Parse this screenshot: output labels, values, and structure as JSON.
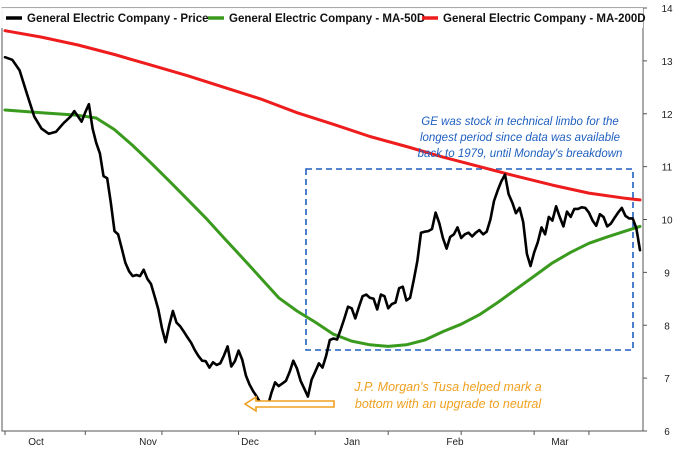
{
  "chart_data": {
    "type": "line",
    "title": "",
    "xlabel": "",
    "ylabel": "",
    "ylim": [
      6,
      14
    ],
    "y_ticks": [
      "6",
      "7",
      "8",
      "9",
      "10",
      "11",
      "12",
      "13",
      "14"
    ],
    "x_ticks": [
      "Oct",
      "Nov",
      "Dec",
      "Jan",
      "Feb",
      "Mar"
    ],
    "grid": false,
    "legend_position": "top",
    "colors": {
      "price": "#000000",
      "ma50": "#3a9a1e",
      "ma200": "#ee1c1c",
      "annotation_blue": "#1f5fbf",
      "annotation_orange": "#f0a020",
      "box": "#1f5fbf"
    },
    "series": [
      {
        "name": "General Electric Company - Price",
        "key": "price",
        "points": [
          [
            0,
            13.07
          ],
          [
            2,
            13.02
          ],
          [
            4,
            12.82
          ],
          [
            6,
            12.38
          ],
          [
            8,
            11.95
          ],
          [
            10,
            11.72
          ],
          [
            12,
            11.62
          ],
          [
            14,
            11.66
          ],
          [
            16,
            11.82
          ],
          [
            18,
            11.95
          ],
          [
            19,
            12.05
          ],
          [
            20,
            11.95
          ],
          [
            21,
            11.85
          ],
          [
            22,
            12.03
          ],
          [
            23,
            12.18
          ],
          [
            24,
            11.72
          ],
          [
            25,
            11.45
          ],
          [
            26,
            11.25
          ],
          [
            27,
            10.82
          ],
          [
            28,
            10.78
          ],
          [
            29,
            10.32
          ],
          [
            30,
            9.78
          ],
          [
            31,
            9.72
          ],
          [
            32,
            9.45
          ],
          [
            33,
            9.18
          ],
          [
            34,
            9.02
          ],
          [
            35,
            8.93
          ],
          [
            36,
            8.95
          ],
          [
            37,
            8.93
          ],
          [
            38,
            9.05
          ],
          [
            39,
            8.88
          ],
          [
            40,
            8.78
          ],
          [
            41,
            8.55
          ],
          [
            42,
            8.3
          ],
          [
            43,
            7.95
          ],
          [
            44,
            7.68
          ],
          [
            45,
            8.0
          ],
          [
            46,
            8.27
          ],
          [
            47,
            8.05
          ],
          [
            48,
            7.98
          ],
          [
            49,
            7.88
          ],
          [
            50,
            7.77
          ],
          [
            51,
            7.67
          ],
          [
            52,
            7.53
          ],
          [
            53,
            7.42
          ],
          [
            54,
            7.33
          ],
          [
            55,
            7.32
          ],
          [
            56,
            7.2
          ],
          [
            57,
            7.3
          ],
          [
            58,
            7.25
          ],
          [
            59,
            7.28
          ],
          [
            60,
            7.43
          ],
          [
            61,
            7.6
          ],
          [
            62,
            7.22
          ],
          [
            63,
            7.32
          ],
          [
            64,
            7.52
          ],
          [
            65,
            7.35
          ],
          [
            66,
            7.05
          ],
          [
            67,
            6.88
          ],
          [
            68,
            6.75
          ],
          [
            69,
            6.65
          ],
          [
            70,
            6.53
          ],
          [
            71,
            6.48
          ],
          [
            72,
            6.47
          ],
          [
            73,
            6.72
          ],
          [
            74,
            6.92
          ],
          [
            75,
            6.85
          ],
          [
            76,
            6.9
          ],
          [
            77,
            6.95
          ],
          [
            78,
            7.12
          ],
          [
            79,
            7.33
          ],
          [
            80,
            7.18
          ],
          [
            81,
            6.95
          ],
          [
            82,
            6.8
          ],
          [
            83,
            6.65
          ],
          [
            84,
            6.97
          ],
          [
            85,
            7.12
          ],
          [
            86,
            7.28
          ],
          [
            87,
            7.2
          ],
          [
            88,
            7.42
          ],
          [
            89,
            7.72
          ],
          [
            90,
            7.75
          ],
          [
            91,
            7.73
          ],
          [
            92,
            7.92
          ],
          [
            93,
            8.13
          ],
          [
            94,
            8.35
          ],
          [
            95,
            8.32
          ],
          [
            96,
            8.13
          ],
          [
            97,
            8.35
          ],
          [
            98,
            8.55
          ],
          [
            99,
            8.58
          ],
          [
            100,
            8.52
          ],
          [
            101,
            8.5
          ],
          [
            102,
            8.3
          ],
          [
            103,
            8.58
          ],
          [
            104,
            8.55
          ],
          [
            105,
            8.32
          ],
          [
            106,
            8.4
          ],
          [
            107,
            8.43
          ],
          [
            108,
            8.7
          ],
          [
            109,
            8.73
          ],
          [
            110,
            8.47
          ],
          [
            111,
            8.52
          ],
          [
            112,
            8.85
          ],
          [
            113,
            9.22
          ],
          [
            114,
            9.75
          ],
          [
            115,
            9.77
          ],
          [
            116,
            9.78
          ],
          [
            117,
            9.82
          ],
          [
            118,
            10.13
          ],
          [
            119,
            9.93
          ],
          [
            120,
            9.65
          ],
          [
            121,
            9.45
          ],
          [
            122,
            9.67
          ],
          [
            123,
            9.72
          ],
          [
            124,
            9.85
          ],
          [
            125,
            9.65
          ],
          [
            126,
            9.72
          ],
          [
            127,
            9.75
          ],
          [
            128,
            9.68
          ],
          [
            129,
            9.75
          ],
          [
            130,
            9.8
          ],
          [
            131,
            9.72
          ],
          [
            132,
            9.77
          ],
          [
            133,
            10.0
          ],
          [
            134,
            10.35
          ],
          [
            135,
            10.55
          ],
          [
            136,
            10.72
          ],
          [
            137,
            10.85
          ],
          [
            138,
            10.48
          ],
          [
            139,
            10.32
          ],
          [
            140,
            10.12
          ],
          [
            141,
            10.22
          ],
          [
            142,
            9.95
          ],
          [
            143,
            9.35
          ],
          [
            144,
            9.12
          ],
          [
            145,
            9.38
          ],
          [
            146,
            9.57
          ],
          [
            147,
            9.85
          ],
          [
            148,
            9.72
          ],
          [
            149,
            10.05
          ],
          [
            150,
            9.98
          ],
          [
            151,
            10.25
          ],
          [
            152,
            10.05
          ],
          [
            153,
            9.87
          ],
          [
            154,
            10.15
          ],
          [
            155,
            10.05
          ],
          [
            156,
            10.2
          ],
          [
            157,
            10.2
          ],
          [
            158,
            10.23
          ],
          [
            159,
            10.22
          ],
          [
            160,
            10.13
          ],
          [
            161,
            9.98
          ],
          [
            162,
            9.88
          ],
          [
            163,
            10.1
          ],
          [
            164,
            10.05
          ],
          [
            165,
            9.87
          ],
          [
            166,
            9.92
          ],
          [
            167,
            10.03
          ],
          [
            168,
            10.13
          ],
          [
            169,
            10.22
          ],
          [
            170,
            10.07
          ],
          [
            171,
            10.02
          ],
          [
            172,
            10.02
          ],
          [
            173,
            9.83
          ],
          [
            174,
            9.42
          ]
        ]
      },
      {
        "name": "General Electric Company - MA-50D",
        "key": "ma50",
        "points": [
          [
            0,
            12.07
          ],
          [
            10,
            12.02
          ],
          [
            20,
            11.97
          ],
          [
            25,
            11.92
          ],
          [
            30,
            11.7
          ],
          [
            35,
            11.4
          ],
          [
            40,
            11.07
          ],
          [
            45,
            10.73
          ],
          [
            50,
            10.38
          ],
          [
            55,
            10.03
          ],
          [
            60,
            9.65
          ],
          [
            65,
            9.28
          ],
          [
            70,
            8.9
          ],
          [
            75,
            8.52
          ],
          [
            80,
            8.27
          ],
          [
            85,
            8.06
          ],
          [
            90,
            7.83
          ],
          [
            95,
            7.7
          ],
          [
            100,
            7.63
          ],
          [
            105,
            7.6
          ],
          [
            110,
            7.63
          ],
          [
            115,
            7.72
          ],
          [
            120,
            7.88
          ],
          [
            125,
            8.02
          ],
          [
            130,
            8.2
          ],
          [
            135,
            8.43
          ],
          [
            140,
            8.68
          ],
          [
            145,
            8.93
          ],
          [
            150,
            9.18
          ],
          [
            155,
            9.38
          ],
          [
            160,
            9.55
          ],
          [
            165,
            9.67
          ],
          [
            170,
            9.78
          ],
          [
            174,
            9.87
          ]
        ]
      },
      {
        "name": "General Electric Company - MA-200D",
        "key": "ma200",
        "points": [
          [
            0,
            13.57
          ],
          [
            10,
            13.45
          ],
          [
            20,
            13.3
          ],
          [
            30,
            13.12
          ],
          [
            40,
            12.92
          ],
          [
            50,
            12.72
          ],
          [
            60,
            12.5
          ],
          [
            70,
            12.28
          ],
          [
            80,
            12.02
          ],
          [
            90,
            11.8
          ],
          [
            100,
            11.57
          ],
          [
            110,
            11.38
          ],
          [
            120,
            11.18
          ],
          [
            130,
            11.0
          ],
          [
            140,
            10.82
          ],
          [
            150,
            10.65
          ],
          [
            160,
            10.5
          ],
          [
            170,
            10.4
          ],
          [
            174,
            10.37
          ]
        ]
      }
    ],
    "annotations": [
      {
        "key": "technical_limbo",
        "lines": [
          "GE was stock in technical limbo for the",
          "longest period since data was available",
          "back to 1979, until Monday's breakdown"
        ]
      },
      {
        "key": "tusa",
        "lines": [
          "J.P. Morgan's Tusa helped mark a",
          "bottom with an upgrade to neutral"
        ]
      }
    ]
  }
}
